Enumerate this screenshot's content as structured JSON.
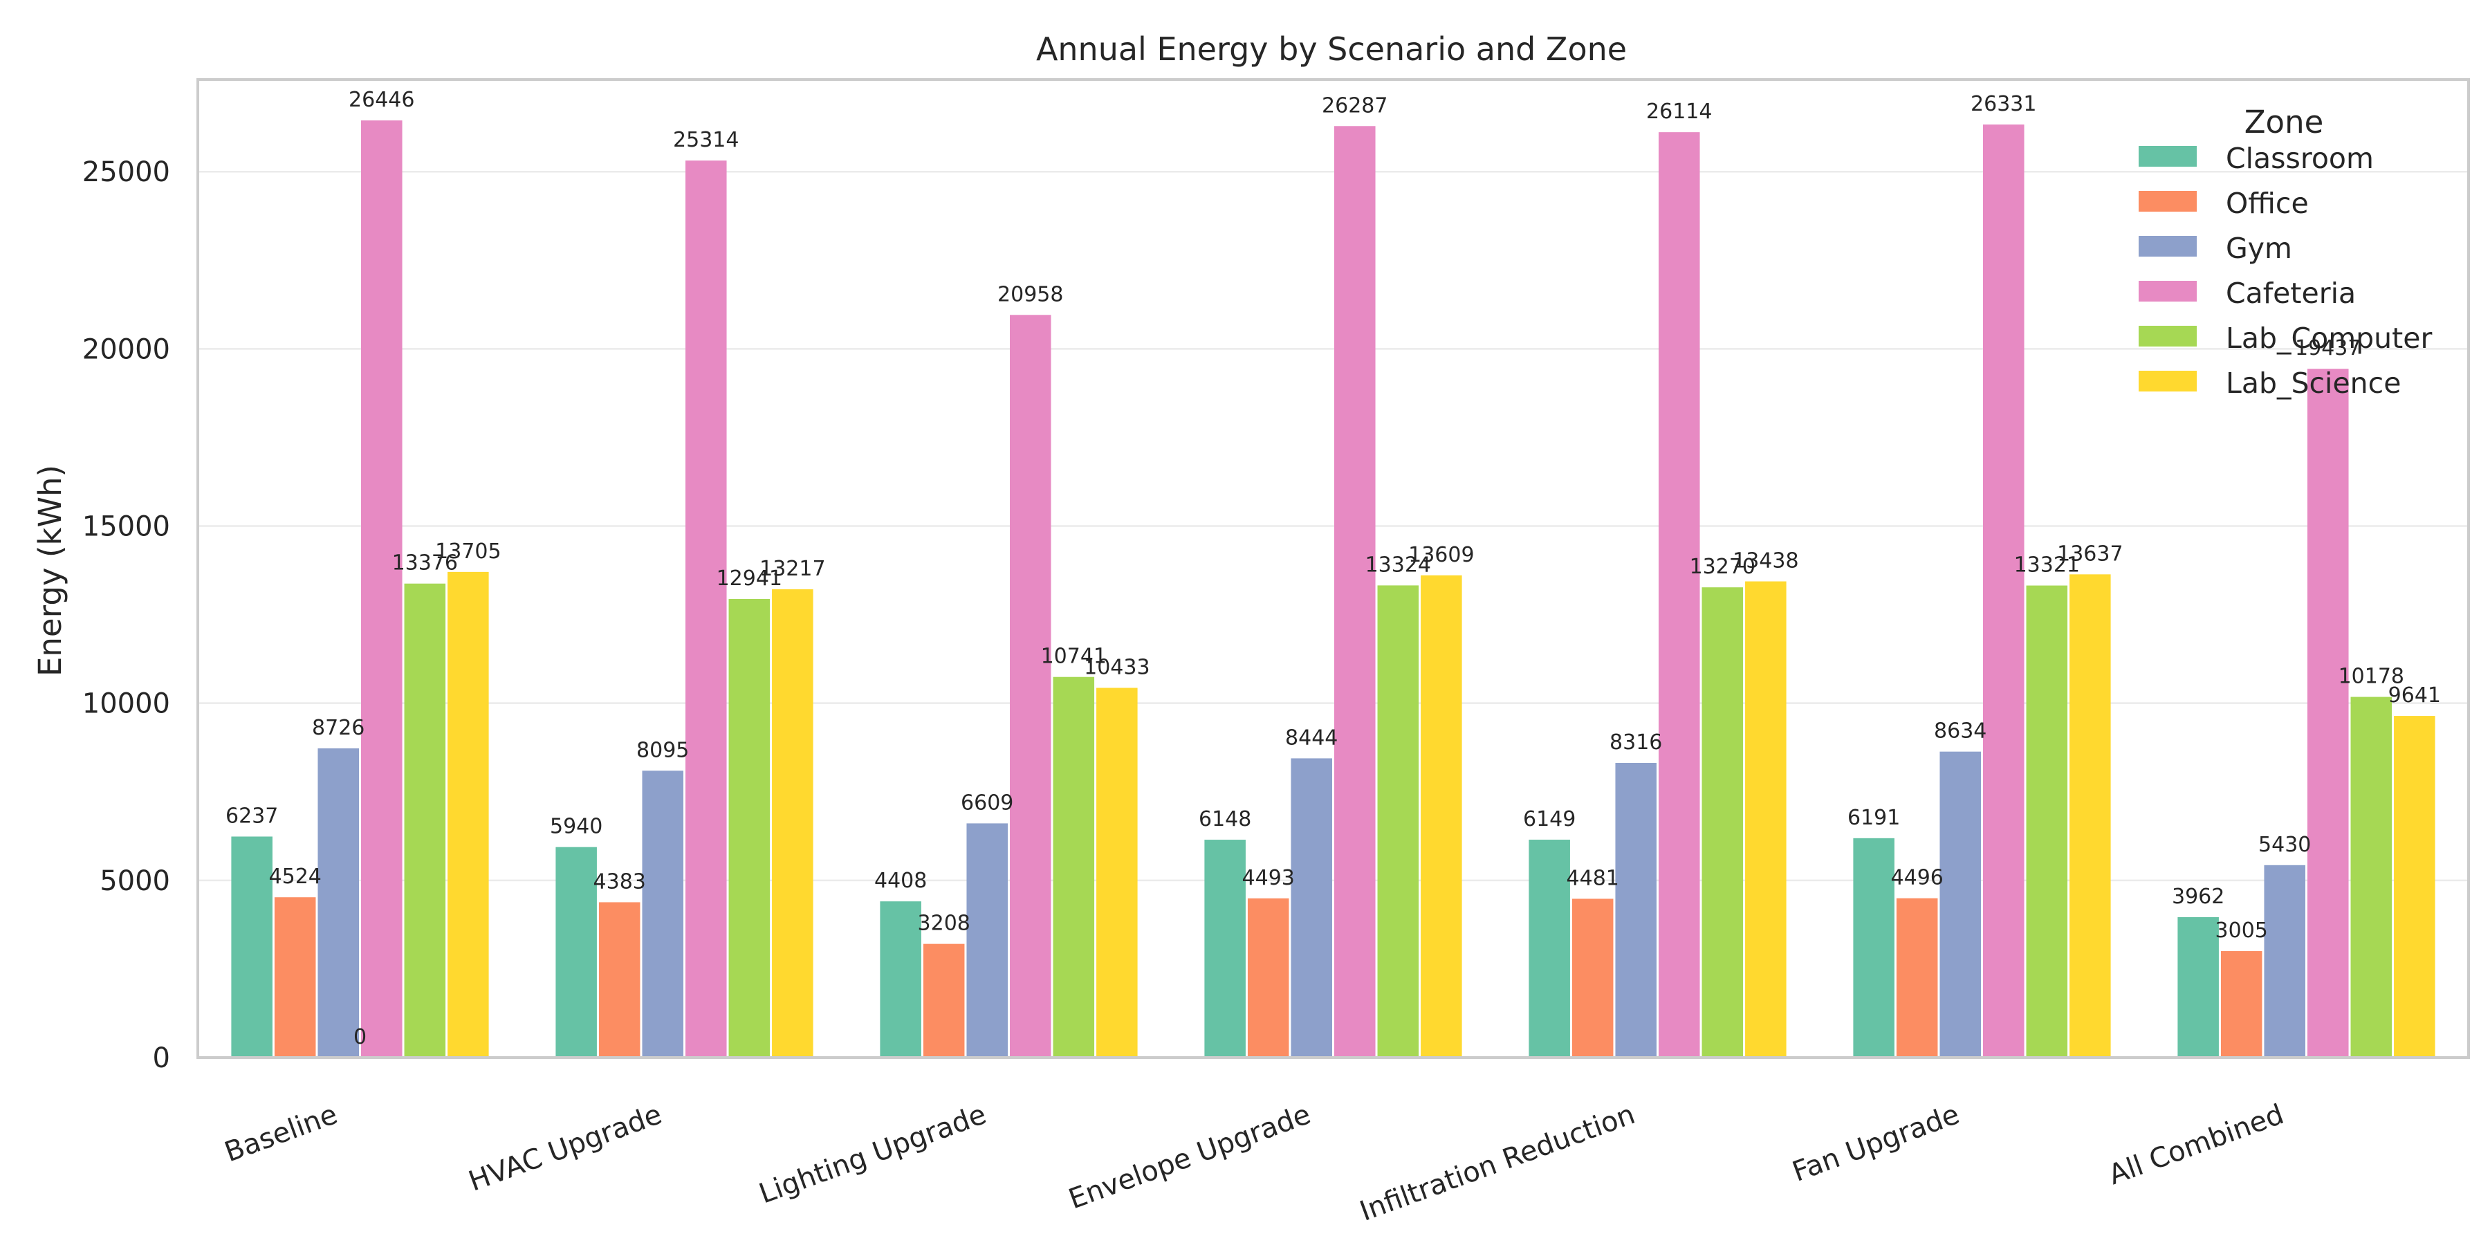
{
  "chart_data": {
    "type": "bar",
    "title": "Annual Energy by Scenario and Zone",
    "xlabel": "",
    "ylabel": "Energy (kWh)",
    "ylim": [
      0,
      27600
    ],
    "yticks": [
      0,
      5000,
      10000,
      15000,
      20000,
      25000
    ],
    "grid": "horizontal",
    "legend": {
      "title": "Zone",
      "placement": "top-right"
    },
    "categories": [
      "Baseline",
      "HVAC Upgrade",
      "Lighting Upgrade",
      "Envelope Upgrade",
      "Infiltration Reduction",
      "Fan Upgrade",
      "All Combined"
    ],
    "series": [
      {
        "name": "Classroom",
        "color": "#66c2a5",
        "values": [
          6237,
          5940,
          4408,
          6148,
          6149,
          6191,
          3962
        ]
      },
      {
        "name": "Office",
        "color": "#fc8d62",
        "values": [
          4524,
          4383,
          3208,
          4493,
          4481,
          4496,
          3005
        ]
      },
      {
        "name": "Gym",
        "color": "#8da0cb",
        "values": [
          8726,
          8095,
          6609,
          8444,
          8316,
          8634,
          5430
        ]
      },
      {
        "name": "Cafeteria",
        "color": "#e78ac3",
        "values": [
          26446,
          25314,
          20958,
          26287,
          26114,
          26331,
          19437
        ]
      },
      {
        "name": "Lab_Computer",
        "color": "#a6d854",
        "values": [
          13376,
          12941,
          10741,
          13324,
          13270,
          13321,
          10178
        ]
      },
      {
        "name": "Lab_Science",
        "color": "#ffd92f",
        "values": [
          13705,
          13217,
          10433,
          13609,
          13438,
          13637,
          9641
        ]
      }
    ],
    "extra_labels": [
      {
        "text": "0",
        "category": "Baseline",
        "series": "Gym-Cafeteria boundary"
      }
    ]
  }
}
